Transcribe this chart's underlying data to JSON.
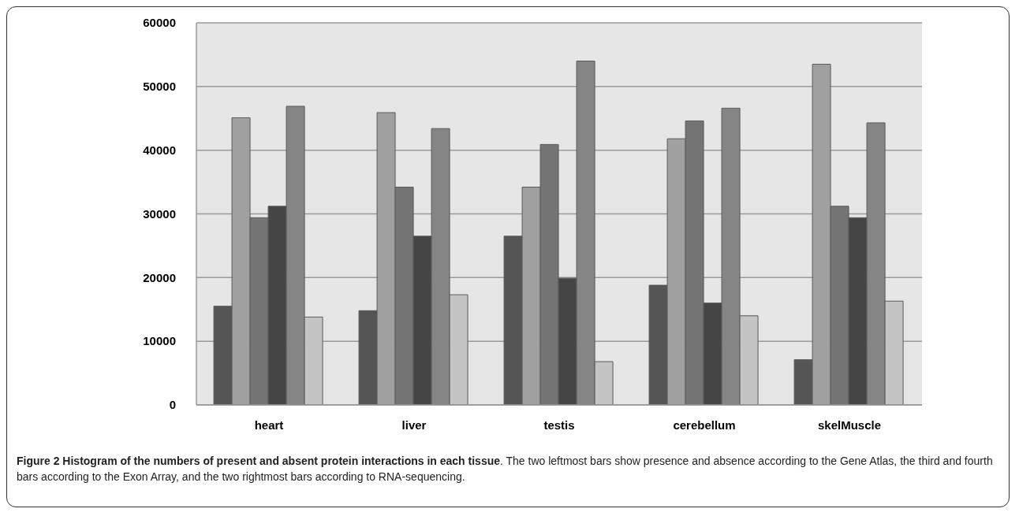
{
  "chart_data": {
    "type": "bar",
    "categories": [
      "heart",
      "liver",
      "testis",
      "cerebellum",
      "skelMuscle"
    ],
    "series": [
      {
        "color": "#555555",
        "values": [
          15500,
          14800,
          26500,
          18800,
          7100
        ]
      },
      {
        "color": "#a0a0a0",
        "values": [
          45100,
          45900,
          34200,
          41800,
          53500
        ]
      },
      {
        "color": "#747474",
        "values": [
          29400,
          34200,
          40900,
          44600,
          31200
        ]
      },
      {
        "color": "#454545",
        "values": [
          31200,
          26500,
          19900,
          16000,
          29400
        ]
      },
      {
        "color": "#858585",
        "values": [
          46900,
          43400,
          54000,
          46600,
          44300
        ]
      },
      {
        "color": "#c4c4c4",
        "values": [
          13800,
          17300,
          6800,
          14000,
          16300
        ]
      }
    ],
    "ylim": [
      0,
      60000
    ],
    "yticks": [
      0,
      10000,
      20000,
      30000,
      40000,
      50000,
      60000
    ],
    "grid": "y",
    "legend": false,
    "annotations": [
      "Figure 2 Histogram of the numbers of present and absent protein interactions in each tissue",
      ". The two leftmost bars show presence and absence according to the Gene Atlas, the third and fourth bars according to the Exon Array, and the two rightmost bars according to RNA-sequencing."
    ]
  }
}
